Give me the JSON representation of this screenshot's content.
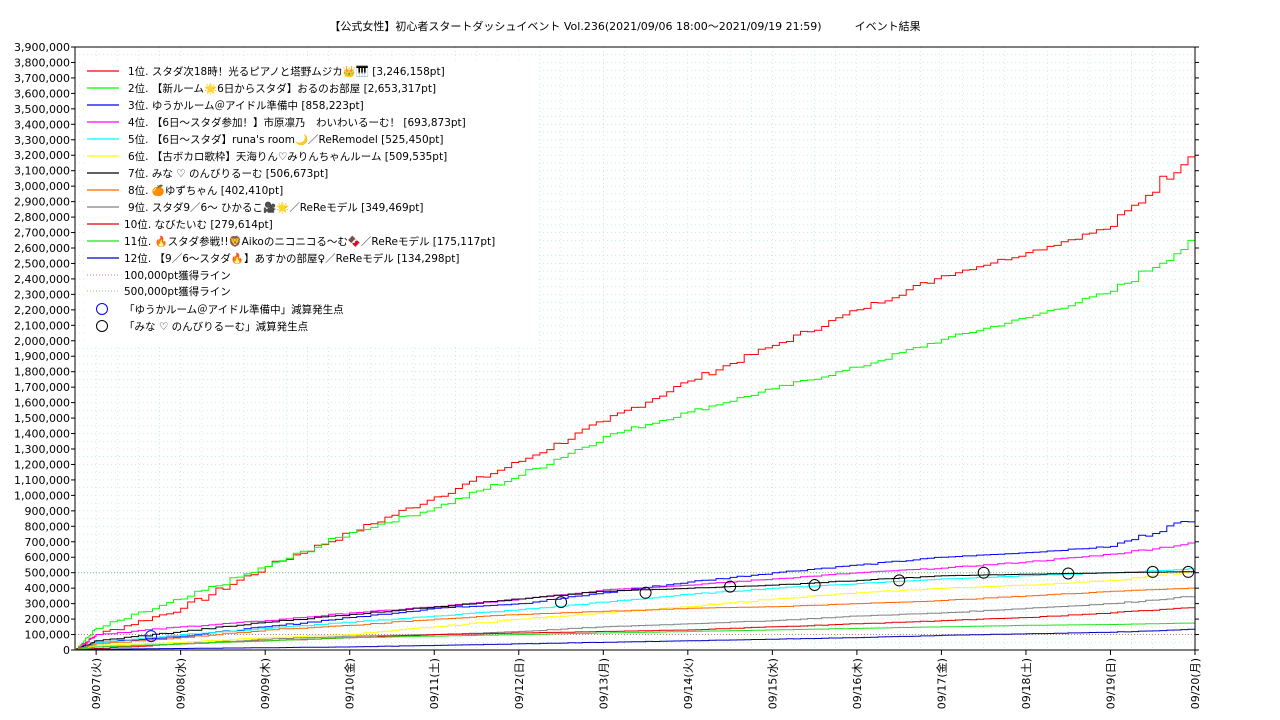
{
  "chart_data": {
    "type": "line",
    "title": "【公式女性】初心者スタートダッシュイベント Vol.236(2021/09/06 18:00～2021/09/19 21:59)　　　イベント結果",
    "xlabel": "",
    "ylabel": "",
    "x_range": [
      "2021/09/06 18:00",
      "2021/09/20 00:00"
    ],
    "ylim": [
      0,
      3900000
    ],
    "y_ticks": [
      "0",
      "100,000",
      "200,000",
      "300,000",
      "400,000",
      "500,000",
      "600,000",
      "700,000",
      "800,000",
      "900,000",
      "1,000,000",
      "1,100,000",
      "1,200,000",
      "1,300,000",
      "1,400,000",
      "1,500,000",
      "1,600,000",
      "1,700,000",
      "1,800,000",
      "1,900,000",
      "2,000,000",
      "2,100,000",
      "2,200,000",
      "2,300,000",
      "2,400,000",
      "2,500,000",
      "2,600,000",
      "2,700,000",
      "2,800,000",
      "2,900,000",
      "3,000,000",
      "3,100,000",
      "3,200,000",
      "3,300,000",
      "3,400,000",
      "3,500,000",
      "3,600,000",
      "3,700,000",
      "3,800,000",
      "3,900,000"
    ],
    "x_ticks": [
      "09/07(火)",
      "09/08(水)",
      "09/09(木)",
      "09/10(金)",
      "09/11(土)",
      "09/12(日)",
      "09/13(月)",
      "09/14(火)",
      "09/15(水)",
      "09/16(木)",
      "09/17(金)",
      "09/18(土)",
      "09/19(日)",
      "09/20(月)"
    ],
    "grid": true,
    "legend_position": "top-left",
    "x_days": [
      -0.25,
      0,
      1,
      2,
      3,
      4,
      5,
      6,
      7,
      8,
      9,
      10,
      11,
      12,
      13
    ],
    "series": [
      {
        "name": "1位. スタダ次18時！光るピアノと塔野ムジカ👑🎹 [3,246,158pt]",
        "color": "#ff0000",
        "values": [
          0,
          100000,
          270000,
          540000,
          760000,
          990000,
          1220000,
          1480000,
          1740000,
          1970000,
          2200000,
          2420000,
          2570000,
          2740000,
          3246158
        ]
      },
      {
        "name": "2位. 【新ルーム🌟6日からスタダ】おるのお部屋 [2,653,317pt]",
        "color": "#00ff00",
        "values": [
          0,
          140000,
          330000,
          540000,
          760000,
          920000,
          1130000,
          1380000,
          1540000,
          1690000,
          1830000,
          2010000,
          2150000,
          2320000,
          2653317
        ]
      },
      {
        "name": "3位. ゆうかルーム＠アイドル準備中 [858,223pt]",
        "color": "#0000ff",
        "values": [
          0,
          50000,
          90000,
          150000,
          210000,
          270000,
          300000,
          370000,
          440000,
          500000,
          550000,
          600000,
          630000,
          670000,
          858223
        ]
      },
      {
        "name": "4位. 【6日〜スタダ参加！】市原凛乃　わいわいるーむ！ [693,873pt]",
        "color": "#ff00ff",
        "values": [
          0,
          100000,
          150000,
          190000,
          240000,
          280000,
          330000,
          390000,
          420000,
          460000,
          500000,
          530000,
          570000,
          620000,
          693873
        ]
      },
      {
        "name": "5位. 【6日〜スタダ】runa's room🌙／ReRemodel [525,450pt]",
        "color": "#00ffff",
        "values": [
          0,
          50000,
          100000,
          140000,
          180000,
          220000,
          260000,
          310000,
          360000,
          400000,
          430000,
          460000,
          480000,
          500000,
          525450
        ]
      },
      {
        "name": "6位. 【古ボカロ歌枠】天海りん♡みりんちゃんルーム [509,535pt]",
        "color": "#ffff00",
        "values": [
          0,
          30000,
          50000,
          80000,
          100000,
          150000,
          200000,
          240000,
          280000,
          330000,
          370000,
          400000,
          420000,
          450000,
          509535
        ]
      },
      {
        "name": "7位. みな ♡ のんびりるーむ [506,673pt]",
        "color": "#000000",
        "values": [
          0,
          60000,
          120000,
          180000,
          230000,
          280000,
          330000,
          380000,
          400000,
          420000,
          450000,
          480000,
          490000,
          500000,
          506673
        ]
      },
      {
        "name": "8位. 🍊ゆずちゃん [402,410pt]",
        "color": "#ff6600",
        "values": [
          0,
          40000,
          80000,
          130000,
          160000,
          200000,
          230000,
          250000,
          270000,
          280000,
          300000,
          320000,
          350000,
          380000,
          402410
        ]
      },
      {
        "name": "9位. スタダ9／6〜 ひかるこ🎥🌟／ReReモデル [349,469pt]",
        "color": "#808080",
        "values": [
          0,
          20000,
          40000,
          70000,
          90000,
          100000,
          120000,
          150000,
          170000,
          190000,
          220000,
          240000,
          270000,
          300000,
          349469
        ]
      },
      {
        "name": "10位. なびたいむ [279,614pt]",
        "color": "#e00000",
        "values": [
          0,
          10000,
          40000,
          60000,
          80000,
          100000,
          110000,
          120000,
          130000,
          150000,
          170000,
          190000,
          210000,
          240000,
          279614
        ]
      },
      {
        "name": "11位. 🔥スタダ参戦!!🦁Aikoのニコニコる〜む🍫／ReReモデル [175,117pt]",
        "color": "#20e020",
        "values": [
          0,
          20000,
          40000,
          60000,
          80000,
          90000,
          100000,
          110000,
          120000,
          130000,
          140000,
          150000,
          160000,
          165000,
          175117
        ]
      },
      {
        "name": "12位. 【9／6〜スタダ🔥】あすかの部屋♀／ReReモデル [134,298pt]",
        "color": "#0000c0",
        "values": [
          0,
          5000,
          10000,
          15000,
          20000,
          30000,
          40000,
          50000,
          60000,
          70000,
          80000,
          95000,
          105000,
          115000,
          134298
        ]
      }
    ],
    "reference_lines": [
      {
        "name": "100,000pt獲得ライン",
        "value": 100000,
        "color": "#c08080"
      },
      {
        "name": "500,000pt獲得ライン",
        "value": 500000,
        "color": "#80c080"
      }
    ],
    "markers": [
      {
        "name": "「ゆうかルーム＠アイドル準備中」減算発生点",
        "color": "#0000ff",
        "points": [
          [
            0.65,
            90000
          ]
        ]
      },
      {
        "name": "「みな ♡ のんびりるーむ」減算発生点",
        "color": "#000000",
        "points": [
          [
            5.5,
            310000
          ],
          [
            6.5,
            370000
          ],
          [
            7.5,
            410000
          ],
          [
            8.5,
            420000
          ],
          [
            9.5,
            450000
          ],
          [
            10.5,
            500000
          ],
          [
            11.5,
            495000
          ],
          [
            12.5,
            505000
          ],
          [
            12.92,
            505000
          ]
        ]
      }
    ]
  }
}
